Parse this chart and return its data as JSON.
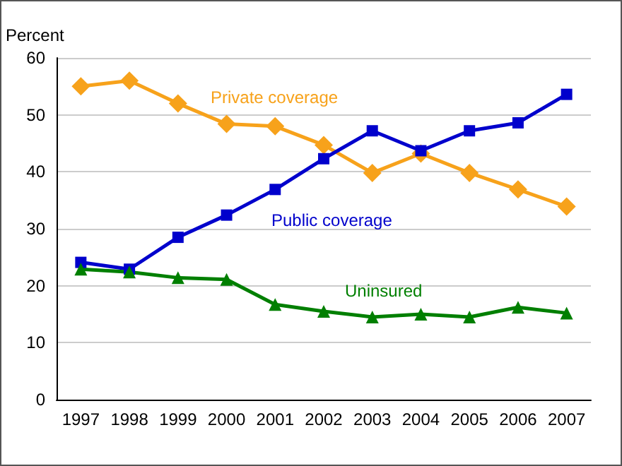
{
  "chart_data": {
    "type": "line",
    "ylabel": "Percent",
    "categories": [
      "1997",
      "1998",
      "1999",
      "2000",
      "2001",
      "2002",
      "2003",
      "2004",
      "2005",
      "2006",
      "2007"
    ],
    "series": [
      {
        "name": "Private coverage",
        "color": "#f7a21b",
        "marker": "diamond",
        "values": [
          55,
          56,
          52,
          48.4,
          48,
          44.7,
          39.8,
          43.2,
          39.8,
          36.9,
          33.9
        ]
      },
      {
        "name": "Public coverage",
        "color": "#0000cc",
        "marker": "square",
        "values": [
          24.1,
          22.9,
          28.5,
          32.4,
          36.9,
          42.3,
          47.2,
          43.7,
          47.2,
          48.6,
          53.6
        ]
      },
      {
        "name": "Uninsured",
        "color": "#007f00",
        "marker": "triangle",
        "values": [
          22.9,
          22.4,
          21.4,
          21.1,
          16.7,
          15.5,
          14.5,
          15,
          14.5,
          16.2,
          15.2
        ]
      }
    ],
    "ylim": [
      0,
      60
    ],
    "yticks": [
      0,
      10,
      20,
      30,
      40,
      50,
      60
    ],
    "grid": "y"
  }
}
